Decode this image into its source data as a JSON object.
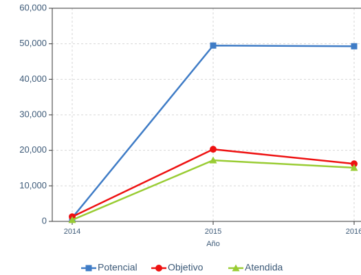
{
  "chart_data": {
    "type": "line",
    "x_label": "Año",
    "categories": [
      "2014",
      "2015",
      "2016"
    ],
    "series": [
      {
        "name": "Potencial",
        "color": "#3f7cc6",
        "marker": "square",
        "values": [
          1000,
          49500,
          49300
        ]
      },
      {
        "name": "Objetivo",
        "color": "#ee1111",
        "marker": "circle",
        "values": [
          1300,
          20300,
          16200
        ]
      },
      {
        "name": "Atendida",
        "color": "#99cc33",
        "marker": "triangle",
        "values": [
          400,
          17200,
          15100
        ]
      }
    ],
    "ylim": [
      0,
      60000
    ],
    "yticks": [
      0,
      {
        "value": 10000,
        "label": "10,000"
      },
      {
        "value": 20000,
        "label": "20,000"
      },
      {
        "value": 30000,
        "label": "30,000"
      },
      {
        "value": 40000,
        "label": "40,000"
      },
      {
        "value": 50000,
        "label": "50,000"
      },
      {
        "value": 60000,
        "label": "60,000"
      }
    ],
    "grid": true
  }
}
